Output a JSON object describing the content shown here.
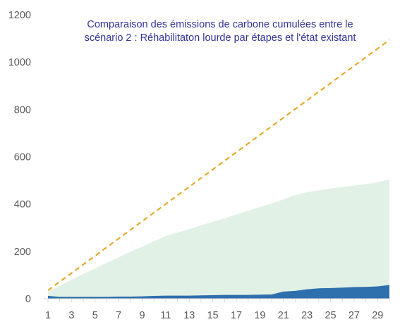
{
  "chart_data": {
    "type": "area",
    "title_lines": [
      "Comparaison des émissions de carbone cumulées entre le",
      "scénario 2 : Réhabilitaton  lourde par étapes et l'état existant"
    ],
    "xlabel": "",
    "ylabel": "",
    "x": [
      1,
      2,
      3,
      4,
      5,
      6,
      7,
      8,
      9,
      10,
      11,
      12,
      13,
      14,
      15,
      16,
      17,
      18,
      19,
      20,
      21,
      22,
      23,
      24,
      25,
      26,
      27,
      28,
      29,
      30
    ],
    "x_tick_labels": [
      "1",
      "3",
      "5",
      "7",
      "9",
      "11",
      "13",
      "15",
      "17",
      "19",
      "21",
      "23",
      "25",
      "27",
      "29"
    ],
    "y_tick_labels": [
      "0",
      "200",
      "400",
      "600",
      "800",
      "1000",
      "1200"
    ],
    "ylim": [
      0,
      1200
    ],
    "grid": false,
    "legend": "none",
    "series": [
      {
        "style": "area",
        "color": "#e1f1e6",
        "values": [
          30,
          55,
          80,
          105,
          128,
          152,
          175,
          198,
          220,
          243,
          265,
          280,
          295,
          310,
          325,
          340,
          356,
          372,
          388,
          402,
          420,
          438,
          450,
          458,
          466,
          472,
          478,
          484,
          492,
          505
        ]
      },
      {
        "style": "area",
        "color": "#2e6fad",
        "values": [
          12,
          8,
          8,
          8,
          8,
          8,
          9,
          9,
          10,
          12,
          13,
          13,
          13,
          14,
          15,
          16,
          16,
          16,
          17,
          18,
          30,
          33,
          40,
          44,
          45,
          47,
          49,
          50,
          52,
          58
        ]
      },
      {
        "style": "dashed-line",
        "color": "#e3a41b",
        "values": [
          35,
          72,
          108,
          145,
          181,
          218,
          254,
          291,
          327,
          364,
          400,
          437,
          473,
          510,
          546,
          583,
          619,
          656,
          692,
          729,
          765,
          802,
          838,
          875,
          911,
          948,
          984,
          1021,
          1057,
          1094
        ]
      }
    ]
  }
}
